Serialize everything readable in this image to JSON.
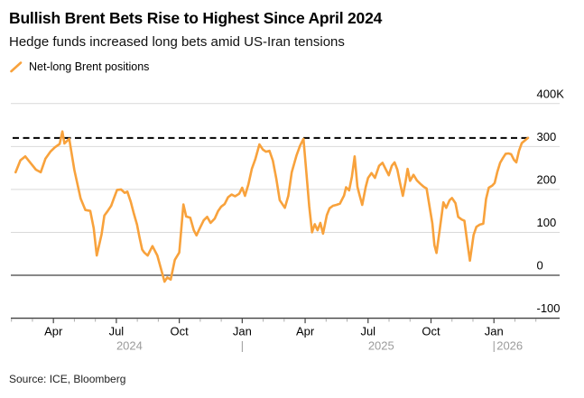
{
  "header": {
    "title": "Bullish Brent Bets Rise to Highest Since April 2024",
    "subtitle": "Hedge funds increased long bets amid US-Iran tensions"
  },
  "legend": {
    "label": "Net-long Brent positions"
  },
  "source": "Source: ICE, Bloomberg",
  "chart_data": {
    "type": "line",
    "series_name": "Net-long Brent positions",
    "unit": "thousands of contracts",
    "legend_position": "top-left",
    "grid": true,
    "ylim": [
      -100,
      400
    ],
    "x_range": [
      "2024-02-01",
      "2026-03-01"
    ],
    "dashed_line": {
      "value": 320
    },
    "y_ticks": [
      {
        "value": 400,
        "label": "400K"
      },
      {
        "value": 300,
        "label": "300"
      },
      {
        "value": 200,
        "label": "200"
      },
      {
        "value": 100,
        "label": "100"
      },
      {
        "value": 0,
        "label": "0"
      },
      {
        "value": -100,
        "label": "-100"
      }
    ],
    "x_labels": [
      {
        "date": "2024-04-01",
        "label": "Apr"
      },
      {
        "date": "2024-07-01",
        "label": "Jul"
      },
      {
        "date": "2024-10-01",
        "label": "Oct"
      },
      {
        "date": "2025-01-01",
        "label": "Jan"
      },
      {
        "date": "2025-04-01",
        "label": "Apr"
      },
      {
        "date": "2025-07-01",
        "label": "Jul"
      },
      {
        "date": "2025-10-01",
        "label": "Oct"
      },
      {
        "date": "2026-01-01",
        "label": "Jan"
      }
    ],
    "year_dividers": [
      "2025-01-01",
      "2026-01-01"
    ],
    "year_labels": [
      {
        "label": "2024",
        "anchor_date": "2024-07-20",
        "align": "middle",
        "dx": 0
      },
      {
        "label": "2025",
        "anchor_date": "2025-07-20",
        "align": "middle",
        "dx": 0
      },
      {
        "label": "2026",
        "anchor_date": "2026-01-01",
        "align": "start",
        "dx": 3
      }
    ],
    "x": [
      "2024-02-07",
      "2024-02-14",
      "2024-02-21",
      "2024-02-28",
      "2024-03-06",
      "2024-03-13",
      "2024-03-20",
      "2024-03-27",
      "2024-04-03",
      "2024-04-10",
      "2024-04-14",
      "2024-04-17",
      "2024-04-24",
      "2024-05-01",
      "2024-05-10",
      "2024-05-17",
      "2024-05-24",
      "2024-05-29",
      "2024-06-03",
      "2024-06-10",
      "2024-06-14",
      "2024-06-19",
      "2024-06-24",
      "2024-06-28",
      "2024-07-02",
      "2024-07-08",
      "2024-07-13",
      "2024-07-17",
      "2024-07-22",
      "2024-07-26",
      "2024-07-31",
      "2024-08-04",
      "2024-08-08",
      "2024-08-11",
      "2024-08-16",
      "2024-08-23",
      "2024-08-30",
      "2024-09-04",
      "2024-09-10",
      "2024-09-14",
      "2024-09-19",
      "2024-09-25",
      "2024-10-01",
      "2024-10-07",
      "2024-10-11",
      "2024-10-17",
      "2024-10-22",
      "2024-10-26",
      "2024-10-30",
      "2024-11-06",
      "2024-11-11",
      "2024-11-16",
      "2024-11-22",
      "2024-11-27",
      "2024-12-01",
      "2024-12-06",
      "2024-12-11",
      "2024-12-16",
      "2024-12-21",
      "2024-12-27",
      "2025-01-01",
      "2025-01-05",
      "2025-01-10",
      "2025-01-15",
      "2025-01-20",
      "2025-01-26",
      "2025-01-31",
      "2025-02-05",
      "2025-02-10",
      "2025-02-15",
      "2025-02-20",
      "2025-02-25",
      "2025-03-02",
      "2025-03-07",
      "2025-03-12",
      "2025-03-19",
      "2025-03-24",
      "2025-03-29",
      "2025-04-03",
      "2025-04-07",
      "2025-04-11",
      "2025-04-15",
      "2025-04-19",
      "2025-04-23",
      "2025-04-27",
      "2025-05-02",
      "2025-05-06",
      "2025-05-11",
      "2025-05-16",
      "2025-05-21",
      "2025-05-27",
      "2025-05-30",
      "2025-06-04",
      "2025-06-08",
      "2025-06-12",
      "2025-06-16",
      "2025-06-19",
      "2025-06-23",
      "2025-06-28",
      "2025-07-01",
      "2025-07-06",
      "2025-07-11",
      "2025-07-17",
      "2025-07-22",
      "2025-07-27",
      "2025-07-31",
      "2025-08-05",
      "2025-08-09",
      "2025-08-13",
      "2025-08-17",
      "2025-08-21",
      "2025-08-25",
      "2025-08-28",
      "2025-09-01",
      "2025-09-06",
      "2025-09-11",
      "2025-09-16",
      "2025-09-21",
      "2025-09-25",
      "2025-09-29",
      "2025-10-03",
      "2025-10-06",
      "2025-10-09",
      "2025-10-14",
      "2025-10-19",
      "2025-10-23",
      "2025-10-28",
      "2025-11-01",
      "2025-11-06",
      "2025-11-10",
      "2025-11-15",
      "2025-11-19",
      "2025-11-23",
      "2025-11-27",
      "2025-12-02",
      "2025-12-06",
      "2025-12-11",
      "2025-12-16",
      "2025-12-20",
      "2025-12-24",
      "2025-12-29",
      "2026-01-02",
      "2026-01-06",
      "2026-01-10",
      "2026-01-14",
      "2026-01-18",
      "2026-01-22",
      "2026-01-26",
      "2026-01-30",
      "2026-02-03",
      "2026-02-07",
      "2026-02-11",
      "2026-02-20"
    ],
    "values": [
      240,
      268,
      277,
      263,
      246,
      240,
      272,
      288,
      298,
      306,
      335,
      307,
      318,
      245,
      179,
      152,
      150,
      110,
      46,
      95,
      139,
      150,
      162,
      180,
      199,
      200,
      192,
      195,
      171,
      146,
      118,
      90,
      60,
      53,
      46,
      68,
      46,
      20,
      -15,
      -5,
      -10,
      36,
      53,
      165,
      137,
      134,
      105,
      93,
      107,
      128,
      136,
      122,
      132,
      150,
      160,
      166,
      182,
      188,
      184,
      190,
      204,
      185,
      212,
      248,
      270,
      305,
      293,
      288,
      290,
      267,
      225,
      175,
      157,
      185,
      240,
      280,
      302,
      318,
      235,
      160,
      100,
      119,
      105,
      122,
      97,
      140,
      156,
      162,
      164,
      167,
      186,
      205,
      198,
      230,
      277,
      206,
      187,
      164,
      206,
      227,
      238,
      227,
      255,
      262,
      246,
      233,
      255,
      263,
      246,
      215,
      185,
      218,
      248,
      220,
      234,
      221,
      213,
      206,
      202,
      164,
      121,
      70,
      52,
      110,
      170,
      157,
      175,
      180,
      168,
      136,
      130,
      127,
      80,
      34,
      94,
      113,
      118,
      120,
      178,
      204,
      209,
      215,
      241,
      262,
      273,
      283,
      284,
      282,
      269,
      263,
      290,
      308,
      320
    ],
    "colors": {
      "line": "#F8A23C",
      "grid": "#D9D9D9",
      "axis": "#414141",
      "dashed": "#000000",
      "tick_label": "#000000",
      "year_label": "#9B9B9B",
      "minor_tick": "#ABABAB"
    }
  }
}
